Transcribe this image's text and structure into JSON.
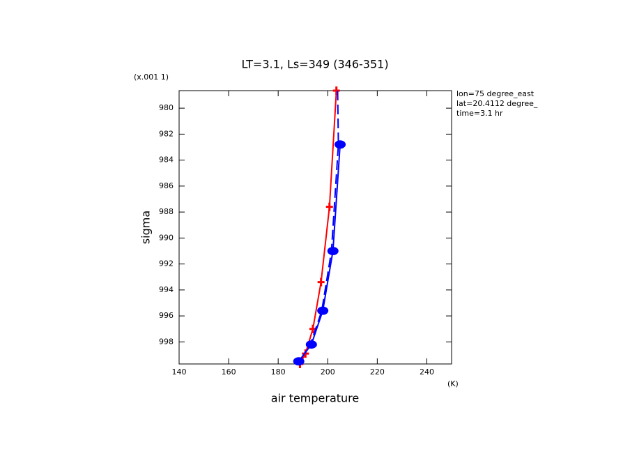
{
  "chart_data": {
    "type": "line",
    "title": "LT=3.1, Ls=349 (346-351)",
    "xlabel": "air temperature",
    "ylabel": "sigma",
    "x_unit": "(K)",
    "y_unit": "(x.001 1)",
    "annotations": [
      "lon=75 degree_east",
      "lat=20.4112 degree_",
      "time=3.1 hr"
    ],
    "xlim": [
      140,
      250
    ],
    "xticks": [
      140,
      160,
      180,
      200,
      220,
      240
    ],
    "ylim": [
      999.7,
      978.65
    ],
    "yticks": [
      980,
      982,
      984,
      986,
      988,
      990,
      992,
      994,
      996,
      998
    ],
    "y_inverted": true,
    "series": [
      {
        "color": "#ff0000",
        "dash": false,
        "marker": "plus",
        "x": [
          203.5,
          200.7,
          197.3,
          194,
          191,
          188.8
        ],
        "values": [
          978.65,
          987.6,
          993.4,
          997,
          998.9,
          999.7
        ]
      },
      {
        "color": "#0000ff",
        "dash": false,
        "marker": "dot",
        "x": [
          205,
          202.1,
          198,
          193.4,
          188.3
        ],
        "values": [
          982.8,
          991,
          995.6,
          998.2,
          999.5
        ]
      },
      {
        "color": "#0000ff",
        "dash": true,
        "marker": "none",
        "x": [
          204,
          204.3,
          201.5,
          197.6,
          193,
          188.5
        ],
        "values": [
          978.65,
          982.8,
          991,
          995.6,
          998.2,
          999.5
        ]
      }
    ]
  }
}
